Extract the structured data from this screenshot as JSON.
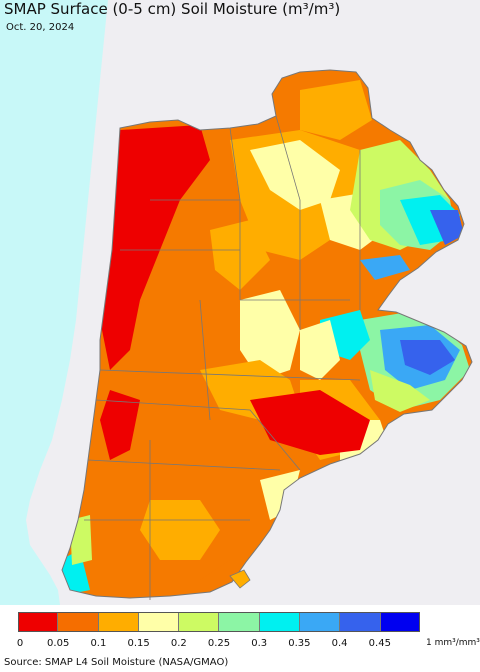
{
  "title": "SMAP Surface (0-5 cm) Soil Moisture (m³/m³)",
  "date": "Oct. 20, 2024",
  "source": "Source: SMAP L4 Soil Moisture (NASA/GMAO)",
  "legend": {
    "units": "1 mm³/mm³",
    "ticks": [
      "0",
      "0.05",
      "0.1",
      "0.15",
      "0.2",
      "0.25",
      "0.3",
      "0.35",
      "0.4",
      "0.45"
    ],
    "colors": [
      "#ee0000",
      "#f56e00",
      "#ffad00",
      "#ffffa8",
      "#cdfa63",
      "#8cf5a5",
      "#00f0f0",
      "#3aa8f5",
      "#3662ed",
      "#0000f0"
    ]
  },
  "map": {
    "ocean_color": "#c8f8f8",
    "land_outside_color": "#efeef2",
    "border_color": "#777777"
  }
}
